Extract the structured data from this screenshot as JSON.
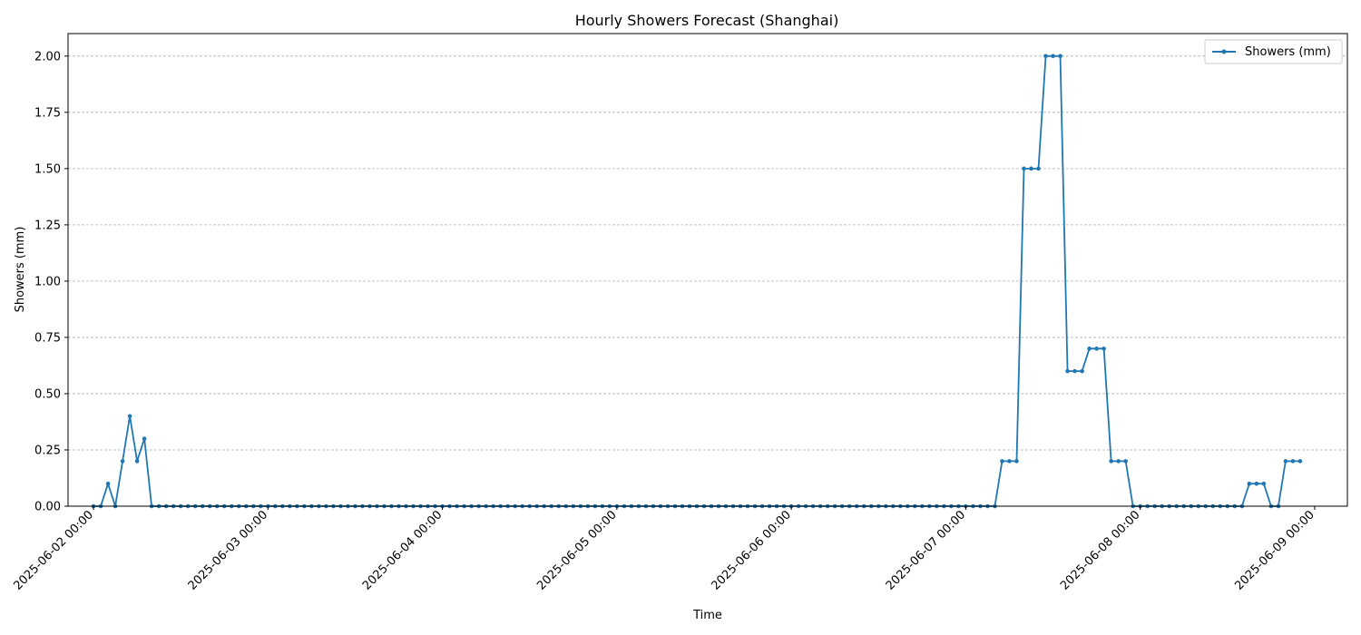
{
  "chart_data": {
    "type": "line",
    "title": "Hourly Showers Forecast (Shanghai)",
    "xlabel": "Time",
    "ylabel": "Showers (mm)",
    "legend_position": "top-right",
    "grid": {
      "x": false,
      "y": true
    },
    "xlim": [
      "2025-06-01 20:30",
      "2025-06-09 04:30"
    ],
    "ylim": [
      0,
      2.1
    ],
    "x_ticks": [
      "2025-06-02 00:00",
      "2025-06-03 00:00",
      "2025-06-04 00:00",
      "2025-06-05 00:00",
      "2025-06-06 00:00",
      "2025-06-07 00:00",
      "2025-06-08 00:00",
      "2025-06-09 00:00"
    ],
    "y_ticks": [
      "0.00",
      "0.25",
      "0.50",
      "0.75",
      "1.00",
      "1.25",
      "1.50",
      "1.75",
      "2.00"
    ],
    "x_start": "2025-06-02 00:00",
    "x_step": "1h",
    "series": [
      {
        "name": "Showers (mm)",
        "color": "#1f77b4",
        "marker": "circle",
        "values": [
          0,
          0,
          0.1,
          0,
          0.2,
          0.4,
          0.2,
          0.3,
          0,
          0,
          0,
          0,
          0,
          0,
          0,
          0,
          0,
          0,
          0,
          0,
          0,
          0,
          0,
          0,
          0,
          0,
          0,
          0,
          0,
          0,
          0,
          0,
          0,
          0,
          0,
          0,
          0,
          0,
          0,
          0,
          0,
          0,
          0,
          0,
          0,
          0,
          0,
          0,
          0,
          0,
          0,
          0,
          0,
          0,
          0,
          0,
          0,
          0,
          0,
          0,
          0,
          0,
          0,
          0,
          0,
          0,
          0,
          0,
          0,
          0,
          0,
          0,
          0,
          0,
          0,
          0,
          0,
          0,
          0,
          0,
          0,
          0,
          0,
          0,
          0,
          0,
          0,
          0,
          0,
          0,
          0,
          0,
          0,
          0,
          0,
          0,
          0,
          0,
          0,
          0,
          0,
          0,
          0,
          0,
          0,
          0,
          0,
          0,
          0,
          0,
          0,
          0,
          0,
          0,
          0,
          0,
          0,
          0,
          0,
          0,
          0,
          0,
          0,
          0,
          0,
          0.2,
          0.2,
          0.2,
          1.5,
          1.5,
          1.5,
          2.0,
          2.0,
          2.0,
          0.6,
          0.6,
          0.6,
          0.7,
          0.7,
          0.7,
          0.2,
          0.2,
          0.2,
          0,
          0,
          0,
          0,
          0,
          0,
          0,
          0,
          0,
          0,
          0,
          0,
          0,
          0,
          0,
          0,
          0.1,
          0.1,
          0.1,
          0,
          0,
          0.2,
          0.2,
          0.2
        ]
      }
    ]
  }
}
